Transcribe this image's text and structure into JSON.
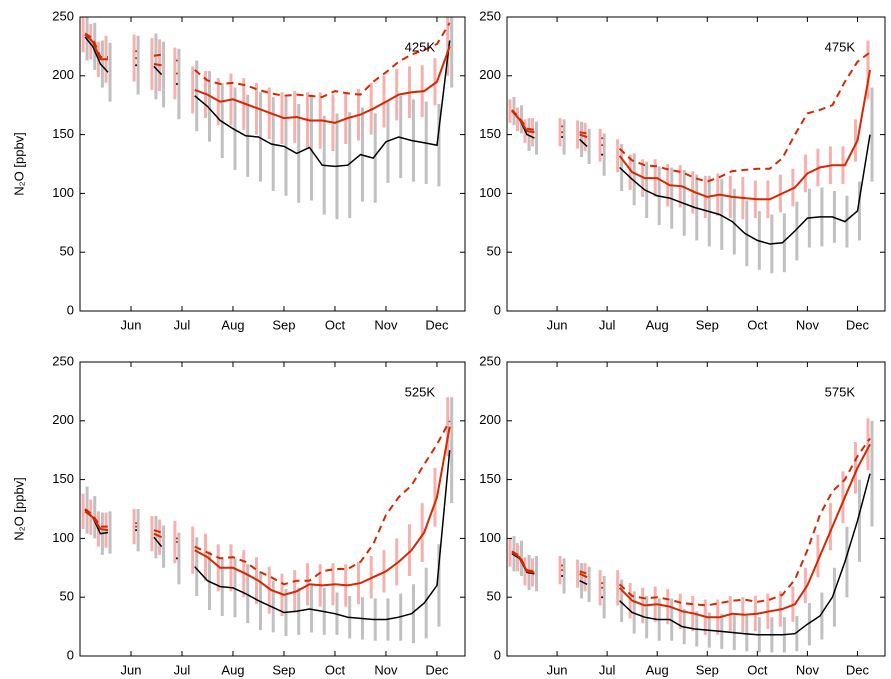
{
  "chart_data": [
    {
      "type": "line",
      "annotation": "425K",
      "ylabel": "N₂O [ppbv]",
      "x": [
        5.1,
        5.25,
        5.4,
        5.55,
        null,
        6.1,
        null,
        6.45,
        6.6,
        null,
        6.9,
        null,
        7.25,
        7.5,
        7.75,
        8.0,
        8.25,
        8.5,
        8.75,
        9.0,
        9.25,
        9.5,
        9.75,
        10.0,
        10.25,
        10.5,
        10.75,
        11.0,
        11.25,
        11.5,
        11.75,
        12.0,
        12.25
      ],
      "xlim": [
        5.0,
        12.55
      ],
      "xticks": [
        {
          "value": 6,
          "label": "Jun"
        },
        {
          "value": 7,
          "label": "Jul"
        },
        {
          "value": 8,
          "label": "Aug"
        },
        {
          "value": 9,
          "label": "Sep"
        },
        {
          "value": 10,
          "label": "Oct"
        },
        {
          "value": 11,
          "label": "Nov"
        },
        {
          "value": 12,
          "label": "Dec"
        }
      ],
      "ylim": [
        0,
        250
      ],
      "yticks": [
        0,
        50,
        100,
        150,
        200,
        250
      ],
      "series": [
        {
          "color": "#000000",
          "style": "solid",
          "error_color": "#c0c0c0",
          "values": [
            233,
            225,
            210,
            203,
            null,
            209,
            null,
            208,
            201,
            null,
            193,
            null,
            183,
            174,
            162,
            155,
            149,
            148,
            142,
            140,
            134,
            139,
            124,
            123,
            124,
            133,
            130,
            144,
            148,
            145,
            143,
            141,
            230
          ],
          "errors": [
            20,
            20,
            20,
            25,
            null,
            25,
            null,
            28,
            28,
            null,
            30,
            null,
            30,
            30,
            32,
            35,
            35,
            38,
            40,
            42,
            42,
            45,
            42,
            45,
            45,
            40,
            38,
            35,
            35,
            35,
            35,
            35,
            40
          ]
        },
        {
          "color": "#d62800",
          "style": "solid",
          "error_color": "#f7b0ae",
          "values": [
            235,
            229,
            214,
            214,
            null,
            215,
            null,
            210,
            209,
            null,
            202,
            null,
            188,
            184,
            178,
            180,
            176,
            172,
            168,
            164,
            165,
            162,
            162,
            160,
            164,
            167,
            172,
            178,
            184,
            186,
            187,
            195,
            225
          ],
          "errors": [
            15,
            15,
            15,
            20,
            null,
            20,
            null,
            22,
            22,
            null,
            22,
            null,
            20,
            20,
            20,
            22,
            22,
            22,
            22,
            22,
            22,
            24,
            24,
            24,
            22,
            22,
            22,
            22,
            22,
            22,
            22,
            20,
            25
          ]
        },
        {
          "color": "#d62800",
          "style": "dashed",
          "values": [
            236,
            232,
            216,
            216,
            null,
            221,
            null,
            217,
            218,
            null,
            213,
            null,
            205,
            196,
            193,
            194,
            192,
            188,
            185,
            183,
            184,
            183,
            182,
            187,
            185,
            184,
            195,
            203,
            212,
            218,
            222,
            227,
            245
          ]
        }
      ]
    },
    {
      "type": "line",
      "annotation": "475K",
      "x": [
        5.1,
        5.25,
        5.4,
        5.55,
        null,
        6.1,
        null,
        6.45,
        6.6,
        null,
        6.9,
        null,
        7.25,
        7.5,
        7.75,
        8.0,
        8.25,
        8.5,
        8.75,
        9.0,
        9.25,
        9.5,
        9.75,
        10.0,
        10.25,
        10.5,
        10.75,
        11.0,
        11.25,
        11.5,
        11.75,
        12.0,
        12.25
      ],
      "xlim": [
        5.0,
        12.55
      ],
      "xticks": [
        {
          "value": 6,
          "label": "Jun"
        },
        {
          "value": 7,
          "label": "Jul"
        },
        {
          "value": 8,
          "label": "Aug"
        },
        {
          "value": 9,
          "label": "Sep"
        },
        {
          "value": 10,
          "label": "Oct"
        },
        {
          "value": 11,
          "label": "Nov"
        },
        {
          "value": 12,
          "label": "Dec"
        }
      ],
      "ylim": [
        0,
        250
      ],
      "yticks": [
        0,
        50,
        100,
        150,
        200,
        250
      ],
      "series": [
        {
          "color": "#000000",
          "style": "solid",
          "error_color": "#c0c0c0",
          "values": [
            170,
            163,
            150,
            147,
            null,
            148,
            null,
            146,
            140,
            null,
            133,
            null,
            122,
            112,
            103,
            98,
            96,
            92,
            88,
            85,
            82,
            76,
            66,
            60,
            57,
            58,
            68,
            79,
            80,
            80,
            76,
            85,
            150
          ],
          "errors": [
            12,
            12,
            14,
            14,
            null,
            15,
            null,
            15,
            15,
            null,
            18,
            null,
            20,
            22,
            24,
            25,
            26,
            28,
            28,
            30,
            30,
            28,
            28,
            25,
            25,
            25,
            25,
            25,
            25,
            22,
            22,
            25,
            40
          ]
        },
        {
          "color": "#d62800",
          "style": "solid",
          "error_color": "#f7b0ae",
          "values": [
            170,
            163,
            153,
            152,
            null,
            152,
            null,
            150,
            148,
            null,
            141,
            null,
            132,
            118,
            113,
            113,
            107,
            106,
            101,
            97,
            99,
            97,
            96,
            95,
            95,
            100,
            105,
            117,
            122,
            124,
            124,
            145,
            205
          ],
          "errors": [
            10,
            10,
            10,
            12,
            null,
            12,
            null,
            12,
            12,
            null,
            14,
            null,
            14,
            15,
            16,
            16,
            18,
            18,
            18,
            18,
            18,
            18,
            18,
            16,
            16,
            16,
            16,
            16,
            16,
            16,
            16,
            18,
            25
          ]
        },
        {
          "color": "#d62800",
          "style": "dashed",
          "values": [
            171,
            164,
            155,
            154,
            null,
            157,
            null,
            152,
            151,
            null,
            147,
            null,
            138,
            128,
            124,
            123,
            120,
            118,
            113,
            110,
            114,
            119,
            120,
            121,
            121,
            130,
            150,
            168,
            171,
            175,
            195,
            212,
            220
          ]
        }
      ]
    },
    {
      "type": "line",
      "annotation": "525K",
      "ylabel": "N₂O [ppbv]",
      "x": [
        5.1,
        5.25,
        5.4,
        5.55,
        null,
        6.1,
        null,
        6.45,
        6.6,
        null,
        6.9,
        null,
        7.25,
        7.5,
        7.75,
        8.0,
        8.25,
        8.5,
        8.75,
        9.0,
        9.25,
        9.5,
        9.75,
        10.0,
        10.25,
        10.5,
        10.75,
        11.0,
        11.25,
        11.5,
        11.75,
        12.0,
        12.25
      ],
      "xlim": [
        5.0,
        12.55
      ],
      "xticks": [
        {
          "value": 6,
          "label": "Jun"
        },
        {
          "value": 7,
          "label": "Jul"
        },
        {
          "value": 8,
          "label": "Aug"
        },
        {
          "value": 9,
          "label": "Sep"
        },
        {
          "value": 10,
          "label": "Oct"
        },
        {
          "value": 11,
          "label": "Nov"
        },
        {
          "value": 12,
          "label": "Dec"
        }
      ],
      "ylim": [
        0,
        250
      ],
      "yticks": [
        0,
        50,
        100,
        150,
        200,
        250
      ],
      "series": [
        {
          "color": "#000000",
          "style": "solid",
          "error_color": "#c0c0c0",
          "values": [
            124,
            118,
            104,
            105,
            null,
            107,
            null,
            101,
            93,
            null,
            83,
            null,
            76,
            64,
            59,
            58,
            53,
            47,
            42,
            37,
            38,
            40,
            38,
            36,
            33,
            32,
            31,
            31,
            33,
            36,
            45,
            60,
            175
          ],
          "errors": [
            20,
            18,
            18,
            18,
            null,
            18,
            null,
            18,
            18,
            null,
            22,
            null,
            25,
            25,
            25,
            25,
            25,
            25,
            22,
            20,
            20,
            20,
            20,
            18,
            18,
            18,
            18,
            18,
            20,
            25,
            30,
            35,
            45
          ]
        },
        {
          "color": "#d62800",
          "style": "solid",
          "error_color": "#f7b0ae",
          "values": [
            123,
            118,
            108,
            107,
            null,
            110,
            null,
            104,
            101,
            null,
            97,
            null,
            90,
            84,
            75,
            75,
            70,
            64,
            56,
            52,
            55,
            61,
            60,
            61,
            60,
            62,
            67,
            72,
            80,
            90,
            105,
            135,
            195
          ],
          "errors": [
            15,
            15,
            15,
            15,
            null,
            15,
            null,
            15,
            15,
            null,
            18,
            null,
            20,
            20,
            20,
            20,
            20,
            20,
            20,
            18,
            18,
            18,
            18,
            18,
            18,
            18,
            18,
            18,
            20,
            22,
            25,
            25,
            25
          ]
        },
        {
          "color": "#d62800",
          "style": "dashed",
          "values": [
            125,
            120,
            110,
            110,
            null,
            113,
            null,
            107,
            105,
            null,
            100,
            null,
            93,
            88,
            83,
            84,
            80,
            72,
            67,
            61,
            64,
            64,
            72,
            74,
            74,
            80,
            95,
            120,
            135,
            145,
            163,
            180,
            200
          ]
        }
      ]
    },
    {
      "type": "line",
      "annotation": "575K",
      "x": [
        5.1,
        5.25,
        5.4,
        5.55,
        null,
        6.1,
        null,
        6.45,
        6.6,
        null,
        6.9,
        null,
        7.25,
        7.5,
        7.75,
        8.0,
        8.25,
        8.5,
        8.75,
        9.0,
        9.25,
        9.5,
        9.75,
        10.0,
        10.25,
        10.5,
        10.75,
        11.0,
        11.25,
        11.5,
        11.75,
        12.0,
        12.25
      ],
      "xlim": [
        5.0,
        12.55
      ],
      "xticks": [
        {
          "value": 6,
          "label": "Jun"
        },
        {
          "value": 7,
          "label": "Jul"
        },
        {
          "value": 8,
          "label": "Aug"
        },
        {
          "value": 9,
          "label": "Sep"
        },
        {
          "value": 10,
          "label": "Oct"
        },
        {
          "value": 11,
          "label": "Nov"
        },
        {
          "value": 12,
          "label": "Dec"
        }
      ],
      "ylim": [
        0,
        250
      ],
      "yticks": [
        0,
        50,
        100,
        150,
        200,
        250
      ],
      "series": [
        {
          "color": "#000000",
          "style": "solid",
          "error_color": "#c0c0c0",
          "values": [
            87,
            83,
            71,
            70,
            null,
            68,
            null,
            64,
            61,
            null,
            50,
            null,
            47,
            37,
            33,
            31,
            31,
            25,
            23,
            22,
            21,
            20,
            19,
            18,
            18,
            18,
            19,
            27,
            34,
            50,
            80,
            115,
            155
          ],
          "errors": [
            15,
            15,
            15,
            15,
            null,
            15,
            null,
            15,
            15,
            null,
            18,
            null,
            18,
            18,
            18,
            18,
            18,
            15,
            15,
            15,
            15,
            15,
            15,
            15,
            15,
            15,
            15,
            18,
            20,
            25,
            30,
            35,
            45
          ]
        },
        {
          "color": "#d62800",
          "style": "solid",
          "error_color": "#f7b0ae",
          "values": [
            88,
            84,
            72,
            71,
            null,
            73,
            null,
            70,
            67,
            null,
            58,
            null,
            58,
            47,
            43,
            44,
            42,
            38,
            36,
            33,
            33,
            36,
            35,
            36,
            38,
            40,
            44,
            60,
            85,
            110,
            135,
            160,
            180
          ],
          "errors": [
            12,
            12,
            12,
            12,
            null,
            12,
            null,
            12,
            12,
            null,
            15,
            null,
            15,
            15,
            15,
            15,
            15,
            15,
            15,
            15,
            15,
            15,
            15,
            15,
            15,
            15,
            15,
            15,
            18,
            20,
            22,
            22,
            22
          ]
        },
        {
          "color": "#d62800",
          "style": "dashed",
          "values": [
            89,
            85,
            73,
            72,
            null,
            77,
            null,
            72,
            70,
            null,
            62,
            null,
            61,
            51,
            49,
            50,
            48,
            45,
            44,
            43,
            45,
            47,
            48,
            46,
            48,
            52,
            65,
            90,
            120,
            140,
            150,
            170,
            185
          ]
        }
      ]
    }
  ]
}
